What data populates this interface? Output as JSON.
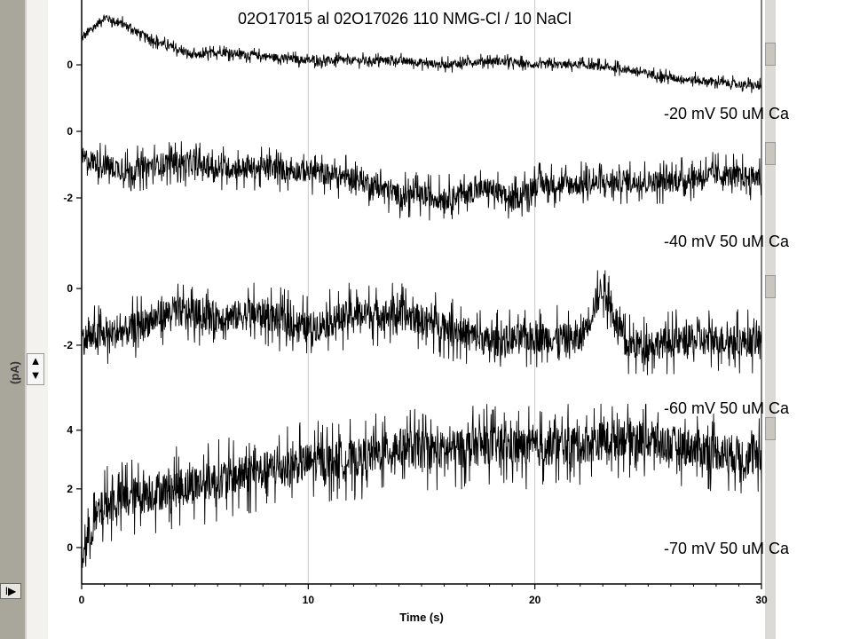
{
  "chart_data": {
    "type": "line",
    "title": "02O17015 al 02O17026  110 NMG-Cl / 10 NaCl",
    "xlabel": "Time (s)",
    "ylabel": "(pA)",
    "xlim": [
      0,
      30
    ],
    "x_ticks": [
      0,
      10,
      20,
      30
    ],
    "grid": true,
    "series": [
      {
        "name": "-20 mV 50 uM Ca",
        "ylim": [
          -0.8,
          1.5
        ],
        "y_ticks": [
          0
        ],
        "x": [
          0,
          1,
          2,
          3,
          4,
          5,
          6,
          8,
          10,
          12,
          14,
          16,
          18,
          20,
          22,
          24,
          26,
          28,
          30
        ],
        "values": [
          0.6,
          1.1,
          0.9,
          0.6,
          0.4,
          0.2,
          0.3,
          0.2,
          0.1,
          0.1,
          0.1,
          0.0,
          0.1,
          0.0,
          0.0,
          -0.1,
          -0.3,
          -0.4,
          -0.5
        ],
        "noise": 0.15
      },
      {
        "name": "-40 mV 50 uM Ca",
        "ylim": [
          -3.2,
          0.8
        ],
        "y_ticks": [
          0,
          -2
        ],
        "x": [
          0,
          2,
          4,
          6,
          8,
          10,
          12,
          14,
          16,
          18,
          19,
          20,
          22,
          24,
          26,
          28,
          30
        ],
        "values": [
          -0.8,
          -1.2,
          -0.9,
          -1.1,
          -1.1,
          -1.2,
          -1.4,
          -1.9,
          -2.0,
          -1.7,
          -2.1,
          -1.6,
          -1.6,
          -1.5,
          -1.5,
          -1.3,
          -1.4
        ],
        "noise": 0.55
      },
      {
        "name": "-60 mV 50 uM Ca",
        "ylim": [
          -3.6,
          1.1
        ],
        "y_ticks": [
          0,
          -2
        ],
        "x": [
          0,
          2,
          4,
          6,
          8,
          10,
          12,
          14,
          16,
          18,
          20,
          22,
          23,
          24,
          26,
          28,
          30
        ],
        "values": [
          -1.8,
          -1.5,
          -0.8,
          -1.0,
          -0.9,
          -1.4,
          -0.9,
          -0.9,
          -1.3,
          -1.9,
          -1.7,
          -1.8,
          0.1,
          -2.0,
          -1.9,
          -1.8,
          -1.9
        ],
        "noise": 0.9
      },
      {
        "name": "-70 mV 50 uM Ca",
        "ylim": [
          -1.0,
          4.9
        ],
        "y_ticks": [
          4,
          2,
          0
        ],
        "x": [
          0,
          0.5,
          1,
          2,
          4,
          6,
          8,
          10,
          12,
          14,
          16,
          18,
          20,
          22,
          24,
          26,
          28,
          30
        ],
        "values": [
          -0.3,
          0.8,
          1.4,
          1.7,
          2.0,
          2.3,
          2.6,
          2.9,
          3.0,
          3.4,
          3.3,
          3.5,
          3.4,
          3.5,
          3.8,
          3.5,
          3.3,
          3.0
        ],
        "noise": 1.1
      }
    ]
  },
  "ui": {
    "corner_button_label": "I▶",
    "scale_up": "▲",
    "scale_down": "▼"
  },
  "colors": {
    "trace": "#000000",
    "grid": "#c8c8c8"
  }
}
